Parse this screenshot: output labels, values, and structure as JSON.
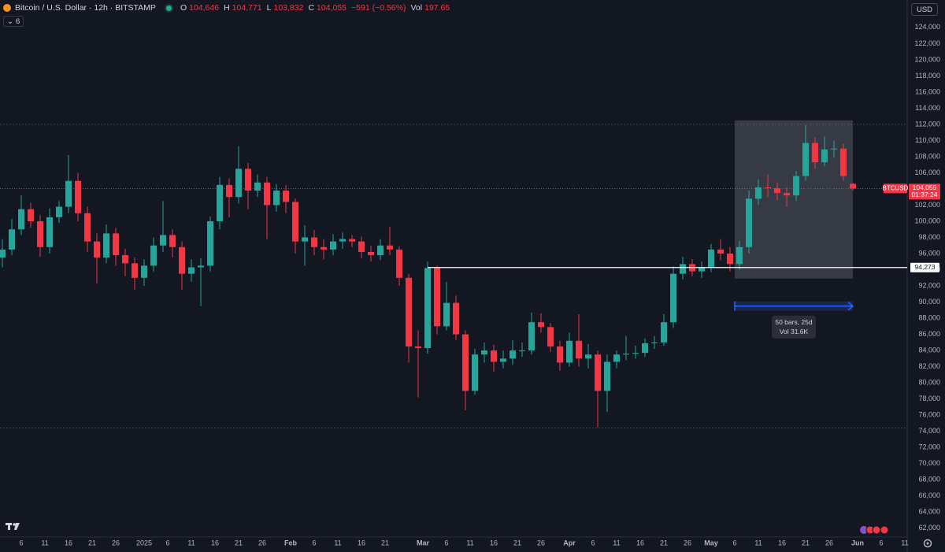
{
  "header": {
    "title": "Bitcoin / U.S. Dollar · 12h · BITSTAMP",
    "o_label": "O",
    "open": "104,646",
    "h_label": "H",
    "high": "104,771",
    "l_label": "L",
    "low": "103,832",
    "c_label": "C",
    "close": "104,055",
    "change": "−591 (−0.56%)",
    "vol_label": "Vol",
    "volume": "197.65",
    "indicators": "6",
    "currency": "USD"
  },
  "chart_data": {
    "type": "candlestick",
    "up_color": "#26a69a",
    "down_color": "#f23645",
    "x": [
      2,
      4,
      6,
      8,
      10,
      12,
      14,
      16,
      18,
      20,
      22,
      24,
      26,
      28,
      30,
      32,
      34,
      36,
      38,
      40,
      42,
      44,
      46,
      48,
      50,
      52,
      54,
      56,
      58,
      60,
      62,
      64,
      66,
      68,
      70,
      72,
      74,
      76,
      78,
      80,
      82,
      84,
      86,
      88,
      90,
      92,
      94,
      96,
      98,
      100,
      102,
      104,
      106,
      108,
      110,
      112,
      114,
      116,
      118,
      120,
      122,
      124,
      126,
      128,
      130,
      132,
      134,
      136,
      138,
      140,
      142,
      144,
      146,
      148,
      150,
      152,
      154,
      156,
      158,
      160,
      162,
      164,
      166,
      168,
      170,
      172,
      174,
      176,
      178,
      180,
      182
    ],
    "open": [
      95500,
      96500,
      99000,
      101500,
      100000,
      96800,
      100500,
      101800,
      105000,
      101000,
      97500,
      95500,
      98500,
      95800,
      94800,
      93000,
      94500,
      97000,
      98300,
      96800,
      93500,
      94300,
      94500,
      100000,
      104500,
      103000,
      106500,
      103800,
      104800,
      102000,
      103800,
      102400,
      97500,
      98000,
      96800,
      96500,
      97500,
      97800,
      97500,
      96200,
      95800,
      97000,
      96500,
      93000,
      84500,
      84300,
      94200,
      87000,
      89900,
      86000,
      79000,
      83500,
      84000,
      82600,
      83000,
      84000,
      84000,
      87500,
      86900,
      84500,
      82500,
      85200,
      83000,
      83500,
      79000,
      82600,
      83500,
      83600,
      83700,
      84900,
      85000,
      87500,
      93500,
      94700,
      93800,
      94300,
      96500,
      96000,
      94700,
      96800,
      102800,
      104200,
      104100,
      103500,
      103200,
      105600,
      109700,
      107300,
      108900,
      109000,
      104646
    ],
    "high": [
      97800,
      100300,
      103200,
      102300,
      100800,
      101600,
      102500,
      108200,
      106000,
      101800,
      98500,
      99600,
      99200,
      96600,
      95500,
      95300,
      98000,
      102500,
      99000,
      97500,
      95300,
      95400,
      100600,
      105500,
      105300,
      109300,
      107200,
      105800,
      105500,
      104600,
      104500,
      102800,
      99500,
      98900,
      97800,
      98400,
      98600,
      98300,
      98100,
      97000,
      97800,
      99300,
      96900,
      93500,
      86500,
      95000,
      94500,
      92500,
      90800,
      86500,
      84200,
      85000,
      84700,
      84000,
      85300,
      85000,
      88700,
      88600,
      87400,
      85200,
      86200,
      88500,
      84800,
      84000,
      83500,
      84000,
      85800,
      84600,
      85500,
      85800,
      88500,
      94400,
      95600,
      95300,
      95000,
      97200,
      97800,
      96800,
      97600,
      103800,
      105200,
      105800,
      104800,
      104200,
      106200,
      111900,
      110400,
      110500,
      110000,
      109600,
      104771
    ],
    "low": [
      94300,
      95800,
      98300,
      99200,
      95600,
      96000,
      99800,
      101000,
      100000,
      96200,
      92300,
      94800,
      94500,
      93200,
      91500,
      92000,
      93800,
      96200,
      95500,
      91500,
      92500,
      89500,
      93800,
      99000,
      100500,
      102200,
      101500,
      103000,
      97800,
      101200,
      101000,
      96000,
      94500,
      95800,
      95300,
      95800,
      96600,
      96800,
      95400,
      95000,
      95200,
      95800,
      92000,
      82500,
      78200,
      83600,
      86000,
      86500,
      85300,
      76600,
      78500,
      82500,
      81400,
      81800,
      82200,
      83200,
      83500,
      86200,
      83800,
      81500,
      82000,
      82000,
      81800,
      74500,
      76400,
      81800,
      82800,
      83000,
      83200,
      84200,
      84600,
      86800,
      92800,
      93200,
      93000,
      93700,
      95200,
      93800,
      94000,
      96000,
      102000,
      103000,
      102600,
      101800,
      102500,
      105000,
      106500,
      106800,
      107900,
      105000,
      103832
    ],
    "close": [
      96500,
      99000,
      101500,
      100000,
      96800,
      100500,
      101800,
      105000,
      101000,
      97500,
      95500,
      98500,
      95800,
      94800,
      93000,
      94500,
      97000,
      98300,
      96800,
      93500,
      94300,
      94500,
      100000,
      104500,
      103000,
      106500,
      103800,
      104800,
      102000,
      103800,
      102400,
      97500,
      98000,
      96800,
      96500,
      97500,
      97800,
      97500,
      96200,
      95800,
      97000,
      96500,
      93000,
      84500,
      84300,
      94200,
      87000,
      89900,
      86000,
      79000,
      83500,
      84000,
      82600,
      83000,
      84000,
      84000,
      87500,
      86900,
      84500,
      82500,
      85200,
      83000,
      83500,
      79000,
      82600,
      83500,
      83600,
      83700,
      84900,
      85000,
      87500,
      93500,
      94700,
      93800,
      94300,
      96500,
      96000,
      94700,
      96800,
      102800,
      104200,
      104100,
      103500,
      103200,
      105600,
      109700,
      107300,
      108900,
      109000,
      105600,
      104055
    ],
    "xlim": [
      1.5,
      193.5
    ],
    "xticks": [
      {
        "value": 6,
        "label": "6"
      },
      {
        "value": 11,
        "label": "11"
      },
      {
        "value": 16,
        "label": "16"
      },
      {
        "value": 21,
        "label": "21"
      },
      {
        "value": 26,
        "label": "26"
      },
      {
        "value": 32,
        "label": "2025"
      },
      {
        "value": 37,
        "label": "6"
      },
      {
        "value": 42,
        "label": "11"
      },
      {
        "value": 47,
        "label": "16"
      },
      {
        "value": 52,
        "label": "21"
      },
      {
        "value": 57,
        "label": "26"
      },
      {
        "value": 63,
        "label": "Feb"
      },
      {
        "value": 68,
        "label": "6"
      },
      {
        "value": 73,
        "label": "11"
      },
      {
        "value": 78,
        "label": "16"
      },
      {
        "value": 83,
        "label": "21"
      },
      {
        "value": 91,
        "label": "Mar"
      },
      {
        "value": 96,
        "label": "6"
      },
      {
        "value": 101,
        "label": "11"
      },
      {
        "value": 106,
        "label": "16"
      },
      {
        "value": 111,
        "label": "21"
      },
      {
        "value": 116,
        "label": "26"
      },
      {
        "value": 122,
        "label": "Apr"
      },
      {
        "value": 127,
        "label": "6"
      },
      {
        "value": 132,
        "label": "11"
      },
      {
        "value": 137,
        "label": "16"
      },
      {
        "value": 142,
        "label": "21"
      },
      {
        "value": 147,
        "label": "26"
      },
      {
        "value": 152,
        "label": "May"
      },
      {
        "value": 157,
        "label": "6"
      },
      {
        "value": 162,
        "label": "11"
      },
      {
        "value": 167,
        "label": "16"
      },
      {
        "value": 172,
        "label": "21"
      },
      {
        "value": 177,
        "label": "26"
      },
      {
        "value": 183,
        "label": "Jun"
      },
      {
        "value": 188,
        "label": "6"
      },
      {
        "value": 193,
        "label": "11"
      }
    ],
    "ylim": [
      60900,
      127400
    ],
    "yticks": [
      {
        "value": 62000,
        "label": "62,000"
      },
      {
        "value": 64000,
        "label": "64,000"
      },
      {
        "value": 66000,
        "label": "66,000"
      },
      {
        "value": 68000,
        "label": "68,000"
      },
      {
        "value": 70000,
        "label": "70,000"
      },
      {
        "value": 72000,
        "label": "72,000"
      },
      {
        "value": 74000,
        "label": "74,000"
      },
      {
        "value": 76000,
        "label": "76,000"
      },
      {
        "value": 78000,
        "label": "78,000"
      },
      {
        "value": 80000,
        "label": "80,000"
      },
      {
        "value": 82000,
        "label": "82,000"
      },
      {
        "value": 84000,
        "label": "84,000"
      },
      {
        "value": 86000,
        "label": "86,000"
      },
      {
        "value": 88000,
        "label": "88,000"
      },
      {
        "value": 90000,
        "label": "90,000"
      },
      {
        "value": 92000,
        "label": "92,000"
      },
      {
        "value": 94000,
        "label": "94,000"
      },
      {
        "value": 96000,
        "label": "96,000"
      },
      {
        "value": 98000,
        "label": "98,000"
      },
      {
        "value": 100000,
        "label": "100,000"
      },
      {
        "value": 102000,
        "label": "102,000"
      },
      {
        "value": 104000,
        "label": "104,000"
      },
      {
        "value": 106000,
        "label": "106,000"
      },
      {
        "value": 108000,
        "label": "108,000"
      },
      {
        "value": 110000,
        "label": "110,000"
      },
      {
        "value": 112000,
        "label": "112,000"
      },
      {
        "value": 114000,
        "label": "114,000"
      },
      {
        "value": 116000,
        "label": "116,000"
      },
      {
        "value": 118000,
        "label": "118,000"
      },
      {
        "value": 120000,
        "label": "120,000"
      },
      {
        "value": 122000,
        "label": "122,000"
      },
      {
        "value": 124000,
        "label": "124,000"
      }
    ],
    "range_lines": [
      112000,
      74400
    ],
    "horizontal_line": {
      "value": 94273,
      "label": "94,273",
      "x_start": 92
    },
    "last_price": {
      "symbol": "BTCUSD",
      "value": 104055,
      "label": "104,055",
      "countdown": "01:37:24"
    },
    "measure": {
      "x": [
        157,
        182
      ],
      "y": [
        92900,
        112500
      ],
      "arrow_y": 89500,
      "label": "50 bars, 25d",
      "volume": "Vol 31.6K"
    }
  }
}
